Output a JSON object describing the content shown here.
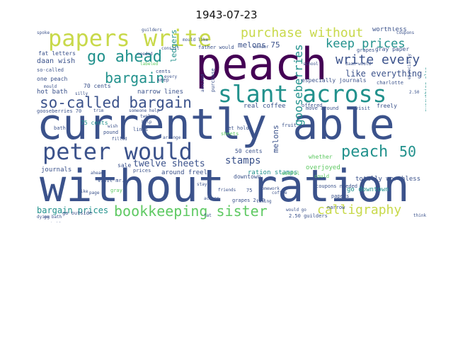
{
  "title": "1943-07-23",
  "palette": [
    "#440154",
    "#3b528b",
    "#21918c",
    "#5ec962",
    "#c8d94a"
  ],
  "words": [
    {
      "text": "without ration",
      "c": 1
    },
    {
      "text": "currently able",
      "c": 1
    },
    {
      "text": "peach",
      "c": 0
    },
    {
      "text": "papers write",
      "c": 4
    },
    {
      "text": "peter would",
      "c": 1
    },
    {
      "text": "slant across",
      "c": 2
    },
    {
      "text": "so-called bargain",
      "c": 1
    },
    {
      "text": "go ahead",
      "c": 2
    },
    {
      "text": "bargain",
      "c": 2
    },
    {
      "text": "purchase without",
      "c": 4
    },
    {
      "text": "keep prices",
      "c": 2
    },
    {
      "text": "write every",
      "c": 1
    },
    {
      "text": "bookkeeping sister",
      "c": 3
    },
    {
      "text": "calligraphy",
      "c": 4
    },
    {
      "text": "gooseberries",
      "c": 2
    },
    {
      "text": "peach",
      "c": 2
    },
    {
      "text": "50",
      "c": 2
    },
    {
      "text": "twelve sheets",
      "c": 1
    },
    {
      "text": "stamps",
      "c": 1
    },
    {
      "text": "like everything",
      "c": 1
    },
    {
      "text": "bargain prices",
      "c": 2
    },
    {
      "text": "melons 75",
      "c": 1
    },
    {
      "text": "ledgers",
      "c": 2
    },
    {
      "text": "worthless",
      "c": 1
    },
    {
      "text": "daan wish",
      "c": 1
    },
    {
      "text": "hot bath",
      "c": 1
    },
    {
      "text": "narrow lines",
      "c": 1
    },
    {
      "text": "fat letters",
      "c": 1
    },
    {
      "text": "one peach",
      "c": 1
    },
    {
      "text": "70 cents",
      "c": 1
    },
    {
      "text": "real coffee",
      "c": 1
    },
    {
      "text": "totally worthless",
      "c": 1
    },
    {
      "text": "ration stamps",
      "c": 2
    },
    {
      "text": "especially journals",
      "c": 1
    },
    {
      "text": "gray paper",
      "c": 1
    },
    {
      "text": "around freely",
      "c": 1
    },
    {
      "text": "go downtown",
      "c": 2
    },
    {
      "text": "melons",
      "c": 1
    },
    {
      "text": "journals",
      "c": 1
    },
    {
      "text": "sale",
      "c": 1
    },
    {
      "text": "75 cents",
      "c": 2
    },
    {
      "text": "gooseberries 70",
      "c": 1
    },
    {
      "text": "move around",
      "c": 1
    },
    {
      "text": "whether",
      "c": 3
    },
    {
      "text": "overjoyed",
      "c": 3
    },
    {
      "text": "visit",
      "c": 1
    },
    {
      "text": "charlotte",
      "c": 1
    },
    {
      "text": "freely",
      "c": 1
    },
    {
      "text": "50 cents",
      "c": 1
    },
    {
      "text": "get hold",
      "c": 1
    },
    {
      "text": "grapes 2.50",
      "c": 1
    },
    {
      "text": "downtown",
      "c": 1
    },
    {
      "text": "2.50 guilders",
      "c": 1
    },
    {
      "text": "could",
      "c": 3
    },
    {
      "text": "everything else",
      "c": 2
    },
    {
      "text": "coupons needed",
      "c": 1
    },
    {
      "text": "prices",
      "c": 1
    },
    {
      "text": "useful",
      "c": 3
    },
    {
      "text": "pound",
      "c": 1
    },
    {
      "text": "lines",
      "c": 1
    },
    {
      "text": "fruit",
      "c": 1
    },
    {
      "text": "offered",
      "c": 1
    },
    {
      "text": "so-called",
      "c": 1
    },
    {
      "text": "cents",
      "c": 1
    },
    {
      "text": "keep",
      "c": 1
    },
    {
      "text": "papers",
      "c": 1
    },
    {
      "text": "narrow",
      "c": 1
    },
    {
      "text": "go outside",
      "c": 1
    },
    {
      "text": "bath",
      "c": 1
    },
    {
      "text": "sheets",
      "c": 3
    },
    {
      "text": "grapes",
      "c": 1
    },
    {
      "text": "daan would",
      "c": 1
    },
    {
      "text": "father would",
      "c": 1
    },
    {
      "text": "school",
      "c": 1
    },
    {
      "text": "coupons",
      "c": 1
    },
    {
      "text": "guilders",
      "c": 1
    },
    {
      "text": "mould like",
      "c": 1
    },
    {
      "text": "visit mr.",
      "c": 1
    },
    {
      "text": "would go",
      "c": 1
    },
    {
      "text": "someone help",
      "c": 1
    },
    {
      "text": "trim",
      "c": 1
    },
    {
      "text": "fat",
      "c": 1
    },
    {
      "text": "gray",
      "c": 3
    },
    {
      "text": "like",
      "c": 1
    },
    {
      "text": "ahead",
      "c": 1
    },
    {
      "text": "twelve",
      "c": 1
    },
    {
      "text": "2.50",
      "c": 1
    },
    {
      "text": "especially",
      "c": 1
    },
    {
      "text": "needed",
      "c": 1
    },
    {
      "text": "spoke",
      "c": 1
    },
    {
      "text": "consist",
      "c": 1
    },
    {
      "text": "outside",
      "c": 1
    },
    {
      "text": "labeled",
      "c": 3
    },
    {
      "text": "wonder",
      "c": 1
    },
    {
      "text": "mould",
      "c": 1
    },
    {
      "text": "dying",
      "c": 1
    },
    {
      "text": "go bath",
      "c": 1
    },
    {
      "text": "thinking",
      "c": 1
    },
    {
      "text": "taking",
      "c": 1
    },
    {
      "text": "friends",
      "c": 1
    },
    {
      "text": "wish",
      "c": 1
    },
    {
      "text": "silly",
      "c": 1
    },
    {
      "text": "help",
      "c": 1
    },
    {
      "text": "filled",
      "c": 1
    },
    {
      "text": "page",
      "c": 1
    },
    {
      "text": "every",
      "c": 1
    },
    {
      "text": "arrange",
      "c": 1
    },
    {
      "text": "homework",
      "c": 1
    },
    {
      "text": "coffee",
      "c": 1
    },
    {
      "text": "stay",
      "c": 1
    },
    {
      "text": "75",
      "c": 1
    },
    {
      "text": "across",
      "c": 1
    },
    {
      "text": "purchase",
      "c": 1
    },
    {
      "text": "advised",
      "c": 1
    }
  ]
}
